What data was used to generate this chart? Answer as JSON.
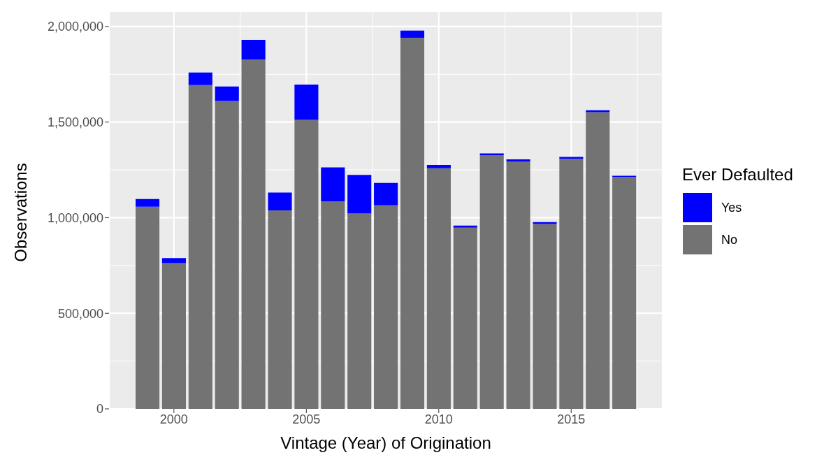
{
  "chart_data": {
    "type": "bar",
    "stacked": true,
    "xlabel": "Vintage (Year) of Origination",
    "ylabel": "Observations",
    "legend_title": "Ever Defaulted",
    "x": [
      1999,
      2000,
      2001,
      2002,
      2003,
      2004,
      2005,
      2006,
      2007,
      2008,
      2009,
      2010,
      2011,
      2012,
      2013,
      2014,
      2015,
      2016,
      2017
    ],
    "series": [
      {
        "name": "No",
        "color": "#737373",
        "values": [
          1057000,
          762000,
          1693000,
          1610000,
          1828000,
          1038000,
          1512000,
          1086000,
          1022000,
          1065000,
          1941000,
          1258000,
          948000,
          1326000,
          1294000,
          967000,
          1308000,
          1552000,
          1214000
        ]
      },
      {
        "name": "Yes",
        "color": "#0000ff",
        "values": [
          41000,
          27000,
          66000,
          76000,
          102000,
          93000,
          184000,
          177000,
          202000,
          117000,
          38000,
          18000,
          11000,
          10000,
          11000,
          10000,
          10000,
          10000,
          5000
        ]
      }
    ],
    "xlim": [
      1997.55,
      2018.45
    ],
    "xticks": [
      2000,
      2005,
      2010,
      2015
    ],
    "ylim": [
      0,
      2080000
    ],
    "yticks": [
      0,
      {
        "value": 500000,
        "label": "500,000"
      },
      {
        "value": 1000000,
        "label": "1,000,000"
      },
      {
        "value": 1500000,
        "label": "1,500,000"
      },
      {
        "value": 2000000,
        "label": "2,000,000"
      }
    ],
    "grid": true,
    "legend": "right"
  }
}
